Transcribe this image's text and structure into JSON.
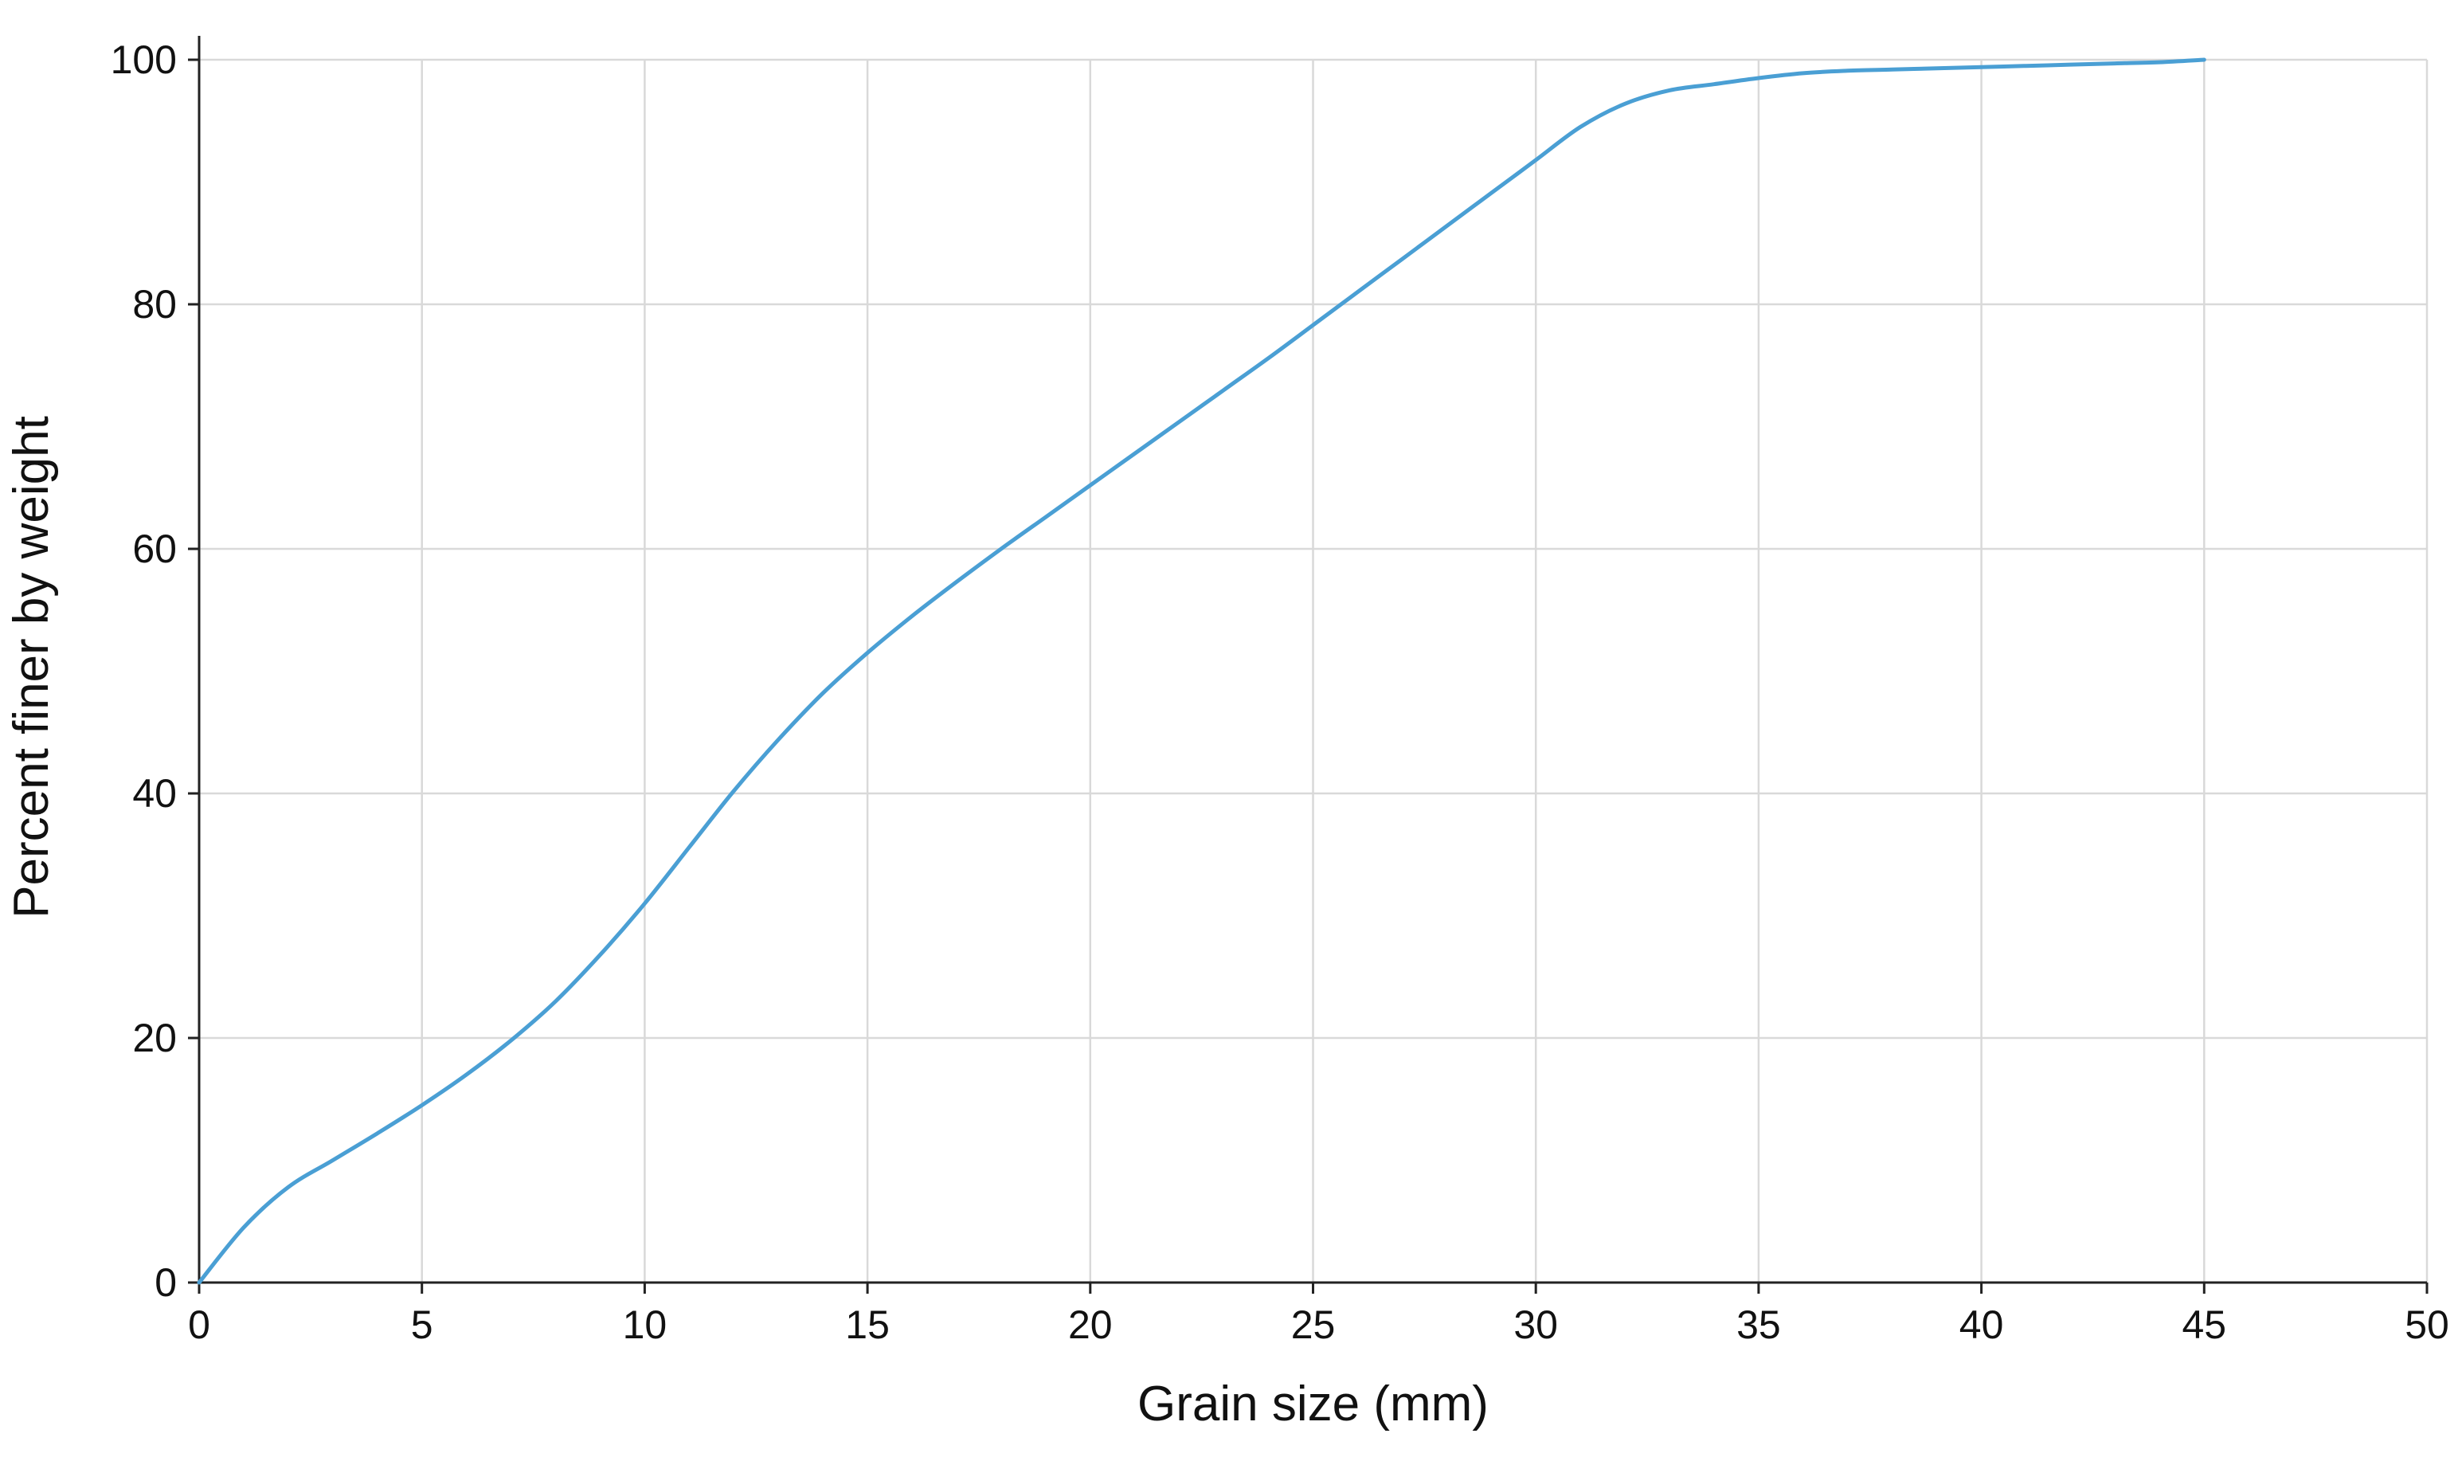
{
  "chart_data": {
    "type": "line",
    "title": "",
    "xlabel": "Grain size (mm)",
    "ylabel": "Percent finer by weight",
    "xlim": [
      0,
      50
    ],
    "ylim": [
      0,
      100
    ],
    "x_ticks": [
      0,
      5,
      10,
      15,
      20,
      25,
      30,
      35,
      40,
      45,
      50
    ],
    "y_ticks": [
      0,
      20,
      40,
      60,
      80,
      100
    ],
    "x_tick_labels": [
      "0",
      "5",
      "10",
      "15",
      "20",
      "25",
      "30",
      "35",
      "40",
      "45",
      "50"
    ],
    "y_tick_labels": [
      "0",
      "20",
      "40",
      "60",
      "80",
      "100"
    ],
    "grid": true,
    "legend": "none",
    "colors": {
      "series": "#4a9fd4",
      "grid": "#d9d9d9",
      "axis": "#222222",
      "text": "#111111"
    },
    "series": [
      {
        "x": [
          0,
          1,
          2,
          3,
          4,
          5,
          6,
          7,
          8,
          9,
          10,
          11,
          12,
          13,
          14,
          15,
          16,
          17,
          18,
          19,
          20,
          21,
          22,
          23,
          24,
          25,
          26,
          27,
          28,
          29,
          30,
          31,
          32,
          33,
          34,
          35,
          36,
          37,
          38,
          39,
          40,
          41,
          42,
          43,
          44,
          45
        ],
        "y": [
          0,
          4.5,
          7.8,
          10,
          12.2,
          14.5,
          17,
          19.8,
          23,
          26.8,
          31,
          35.6,
          40.2,
          44.4,
          48.2,
          51.5,
          54.5,
          57.3,
          60,
          62.6,
          65.2,
          67.8,
          70.4,
          73,
          75.6,
          78.3,
          81,
          83.7,
          86.4,
          89.1,
          91.8,
          94.5,
          96.4,
          97.5,
          98,
          98.5,
          98.9,
          99.1,
          99.2,
          99.3,
          99.4,
          99.5,
          99.6,
          99.7,
          99.8,
          100
        ]
      }
    ]
  }
}
